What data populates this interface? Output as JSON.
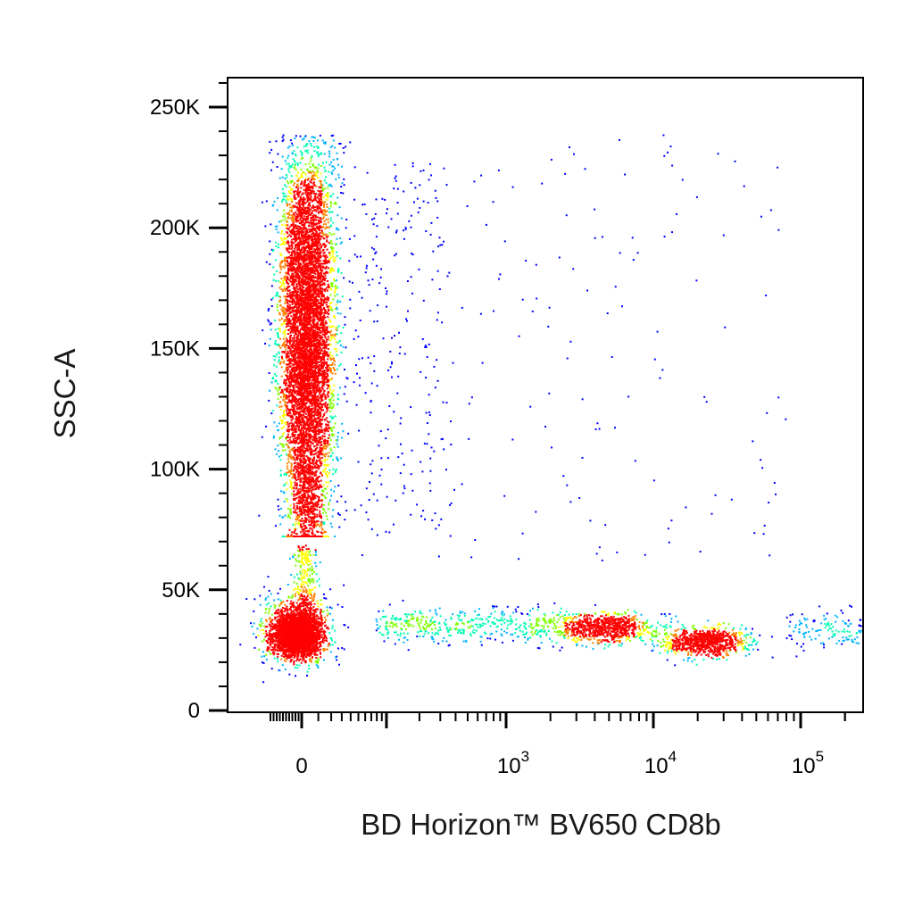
{
  "chart_data": {
    "type": "scatter",
    "subtype": "flow-cytometry-density-dot-plot",
    "xlabel": "BD Horizon™ BV650 CD8b",
    "ylabel": "SSC-A",
    "x_scale": "biexponential",
    "x_ticks": [
      {
        "value": 0,
        "base": "0",
        "exp": ""
      },
      {
        "value": 1000,
        "base": "10",
        "exp": "3"
      },
      {
        "value": 10000,
        "base": "10",
        "exp": "4"
      },
      {
        "value": 100000,
        "base": "10",
        "exp": "5"
      }
    ],
    "y_ticks": [
      {
        "value": 0,
        "label": "0"
      },
      {
        "value": 50000,
        "label": "50K"
      },
      {
        "value": 100000,
        "label": "100K"
      },
      {
        "value": 150000,
        "label": "150K"
      },
      {
        "value": 200000,
        "label": "200K"
      },
      {
        "value": 250000,
        "label": "250K"
      }
    ],
    "ylim": [
      0,
      262144
    ],
    "xlim": [
      -150,
      262144
    ],
    "density_colormap": [
      "#0000ff",
      "#00b4ff",
      "#00ffb4",
      "#80ff00",
      "#ffff00",
      "#ff8000",
      "#ff0000"
    ],
    "populations": [
      {
        "name": "",
        "x_center": 0,
        "y_center": 180000,
        "y_range": [
          80000,
          243000
        ],
        "relative_events": 0.55
      },
      {
        "name": "",
        "x_center": 0,
        "y_center": 30000,
        "y_range": [
          15000,
          50000
        ],
        "relative_events": 0.25
      },
      {
        "name": "",
        "x_center": 18000,
        "y_center": 29000,
        "x_range": [
          3000,
          60000
        ],
        "y_range": [
          20000,
          45000
        ],
        "relative_events": 0.12
      }
    ]
  }
}
